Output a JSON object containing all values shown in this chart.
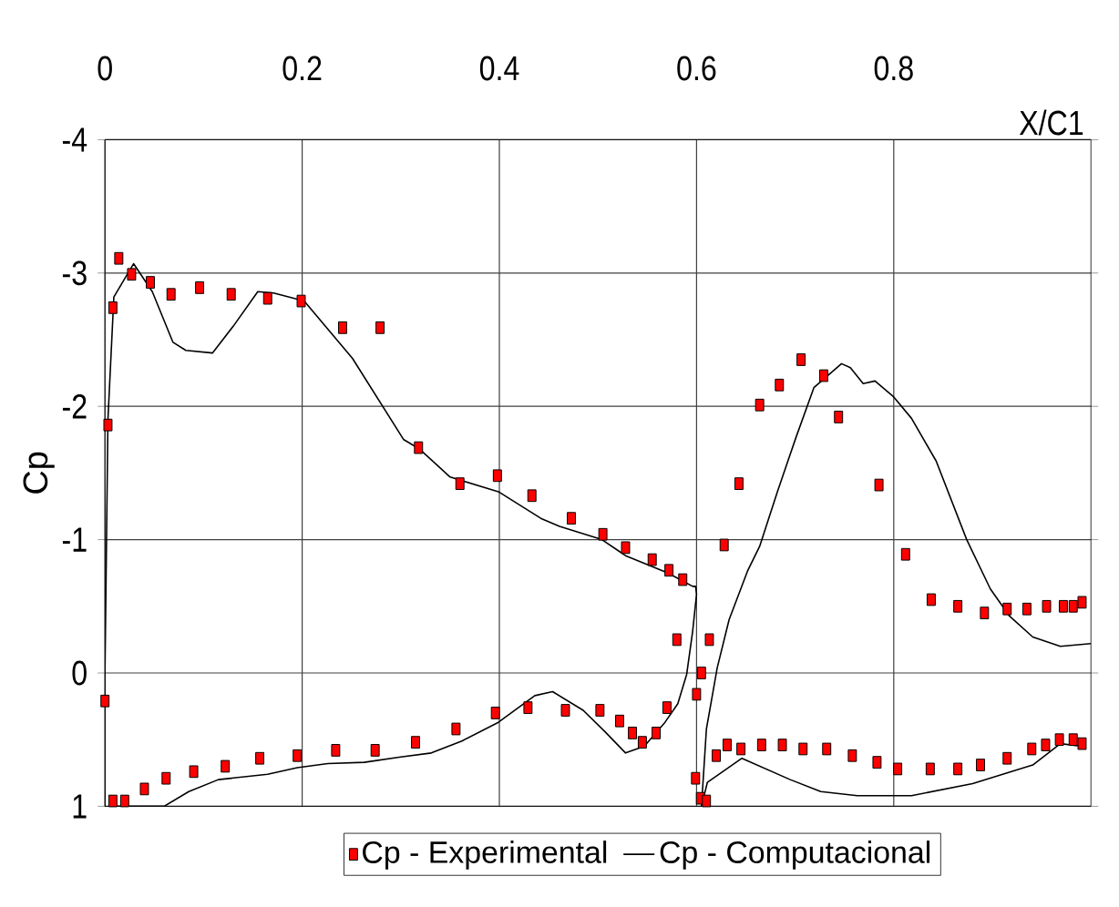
{
  "chart_data": {
    "type": "line",
    "ylabel": "Cp",
    "xlim": [
      0,
      1
    ],
    "ylim": [
      1,
      -4
    ],
    "xlabel": "X/C1",
    "xticks": [
      0,
      0.2,
      0.4,
      0.6,
      0.8
    ],
    "yticks": [
      -4,
      -3,
      -2,
      -1,
      0,
      1
    ],
    "grid": true,
    "legend": "bottom",
    "series": [
      {
        "name": "Cp - Experimental",
        "type": "scatter",
        "marker": "square",
        "color": "#ff0000",
        "x": [
          0.003,
          0.008,
          0.014,
          0.027,
          0.046,
          0.067,
          0.096,
          0.128,
          0.165,
          0.199,
          0.241,
          0.279,
          0.318,
          0.36,
          0.398,
          0.433,
          0.473,
          0.505,
          0.528,
          0.555,
          0.572,
          0.586,
          0.58,
          0.613,
          0.605,
          0.6,
          0.599,
          0.604,
          0.61,
          0.628,
          0.643,
          0.664,
          0.684,
          0.706,
          0.729,
          0.744,
          0.785,
          0.812,
          0.838,
          0.865,
          0.892,
          0.915,
          0.935,
          0.955,
          0.972,
          0.982,
          0.991,
          0,
          0.008,
          0.02,
          0.04,
          0.062,
          0.09,
          0.122,
          0.157,
          0.195,
          0.234,
          0.274,
          0.315,
          0.356,
          0.396,
          0.429,
          0.467,
          0.502,
          0.522,
          0.535,
          0.545,
          0.559,
          0.57,
          0.62,
          0.631,
          0.645,
          0.666,
          0.687,
          0.708,
          0.732,
          0.758,
          0.783,
          0.804,
          0.837,
          0.865,
          0.888,
          0.915,
          0.94,
          0.954,
          0.968,
          0.982,
          0.991
        ],
        "values": [
          -1.86,
          -2.74,
          -3.11,
          -2.99,
          -2.93,
          -2.84,
          -2.89,
          -2.84,
          -2.81,
          -2.79,
          -2.59,
          -2.59,
          -1.69,
          -1.42,
          -1.48,
          -1.33,
          -1.16,
          -1.04,
          -0.94,
          -0.85,
          -0.77,
          -0.7,
          -0.25,
          -0.25,
          0.0,
          0.16,
          0.79,
          0.94,
          0.96,
          -0.96,
          -1.42,
          -2.01,
          -2.16,
          -2.35,
          -2.23,
          -1.92,
          -1.41,
          -0.89,
          -0.55,
          -0.5,
          -0.45,
          -0.48,
          -0.48,
          -0.5,
          -0.5,
          -0.5,
          -0.53,
          0.21,
          0.96,
          0.96,
          0.87,
          0.79,
          0.74,
          0.7,
          0.64,
          0.62,
          0.58,
          0.58,
          0.52,
          0.42,
          0.3,
          0.26,
          0.28,
          0.28,
          0.36,
          0.45,
          0.52,
          0.45,
          0.26,
          0.62,
          0.54,
          0.57,
          0.54,
          0.54,
          0.57,
          0.57,
          0.62,
          0.67,
          0.72,
          0.72,
          0.72,
          0.69,
          0.64,
          0.57,
          0.54,
          0.5,
          0.5,
          0.53
        ]
      },
      {
        "name": "Cp - Computacional",
        "marker": "none",
        "color": "#000000",
        "x": [
          0.004,
          0.017,
          0.041,
          0.06,
          0.085,
          0.115,
          0.165,
          0.195,
          0.226,
          0.263,
          0.3,
          0.331,
          0.362,
          0.399,
          0.436,
          0.454,
          0.485,
          0.507,
          0.528,
          0.547,
          0.568,
          0.581,
          0.59,
          0.596,
          0.6,
          0.599,
          0.596,
          0.571,
          0.528,
          0.522,
          0.504,
          0.461,
          0.442,
          0.399,
          0.35,
          0.319,
          0.303,
          0.251,
          0.202,
          0.171,
          0.155,
          0.131,
          0.109,
          0.082,
          0.069,
          0.048,
          0.029,
          0.009,
          0.003,
          0.0,
          0.0,
          null,
          0.605,
          0.61,
          0.621,
          0.633,
          0.652,
          0.664,
          0.682,
          0.701,
          0.719,
          0.747,
          0.756,
          0.769,
          0.781,
          0.8,
          0.818,
          0.843,
          0.874,
          0.898,
          0.917,
          0.941,
          0.969,
          1.0,
          null,
          0.605,
          0.611,
          0.646,
          0.695,
          0.726,
          0.763,
          0.818,
          0.88,
          0.941,
          0.969,
          0.991
        ],
        "values": [
          1.0,
          1.0,
          1.0,
          1.0,
          0.89,
          0.8,
          0.76,
          0.71,
          0.68,
          0.67,
          0.63,
          0.6,
          0.51,
          0.37,
          0.17,
          0.14,
          0.28,
          0.44,
          0.6,
          0.55,
          0.37,
          0.23,
          0.01,
          -0.31,
          -0.59,
          -0.65,
          -0.65,
          -0.75,
          -0.88,
          -0.91,
          -1.0,
          -1.1,
          -1.16,
          -1.36,
          -1.47,
          -1.68,
          -1.75,
          -2.36,
          -2.79,
          -2.85,
          -2.86,
          -2.61,
          -2.4,
          -2.42,
          -2.48,
          -2.86,
          -3.07,
          -2.82,
          -1.9,
          0.0,
          1.0,
          null,
          1.0,
          0.42,
          -0.04,
          -0.4,
          -0.77,
          -0.95,
          -1.36,
          -1.77,
          -2.14,
          -2.32,
          -2.29,
          -2.17,
          -2.19,
          -2.07,
          -1.91,
          -1.59,
          -1.0,
          -0.63,
          -0.43,
          -0.27,
          -0.2,
          -0.22,
          null,
          1.0,
          0.82,
          0.64,
          0.8,
          0.89,
          0.92,
          0.92,
          0.83,
          0.69,
          0.53,
          0.55
        ]
      }
    ]
  }
}
